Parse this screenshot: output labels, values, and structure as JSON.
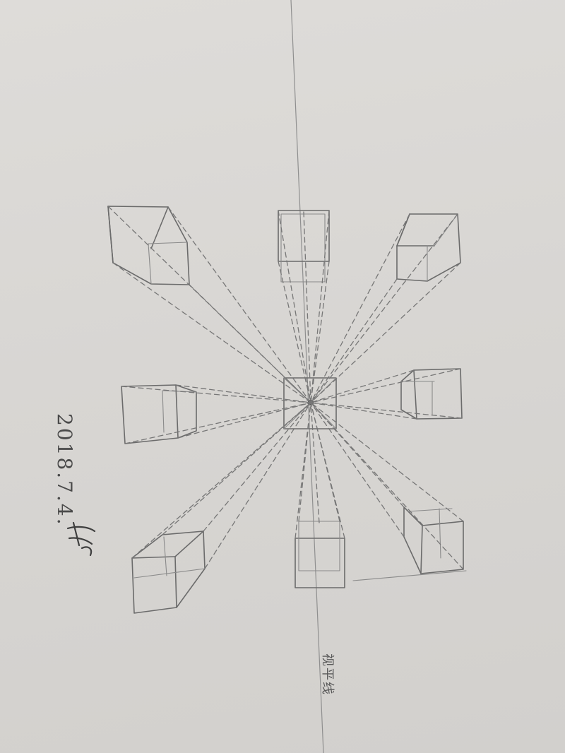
{
  "date_note": "2018.7.4.",
  "signature": "标",
  "horizon_label": "视平线",
  "colors": {
    "paper": "#dcdad7",
    "pencil": "#6b6b6b"
  }
}
